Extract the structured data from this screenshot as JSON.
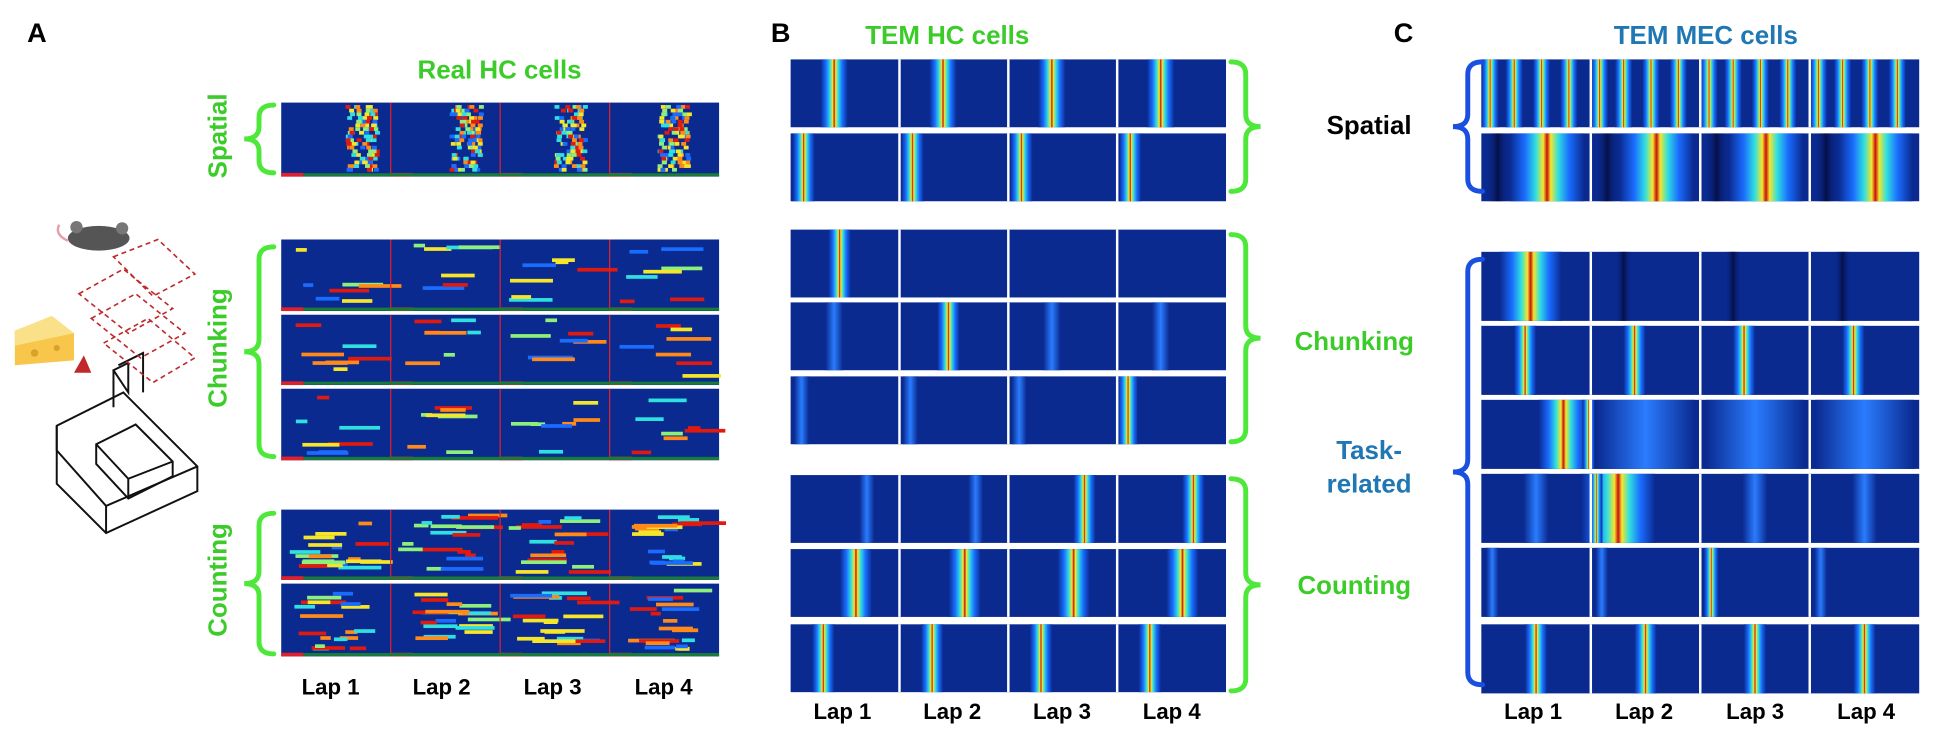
{
  "panels": [
    {
      "letter": "A",
      "title": "Real HC cells",
      "groups": [
        "Spatial",
        "Chunking",
        "Counting"
      ],
      "laps": [
        "Lap 1",
        "Lap 2",
        "Lap 3",
        "Lap 4"
      ]
    },
    {
      "letter": "B",
      "title": "TEM HC cells",
      "groups": [
        "Chunking",
        "Counting"
      ],
      "laps": [
        "Lap 1",
        "Lap 2",
        "Lap 3",
        "Lap 4"
      ]
    },
    {
      "letter": "C",
      "title": "TEM MEC cells",
      "groups": [
        "Spatial",
        "Task-related"
      ],
      "laps": [
        "Lap 1",
        "Lap 2",
        "Lap 3",
        "Lap 4"
      ]
    }
  ]
}
